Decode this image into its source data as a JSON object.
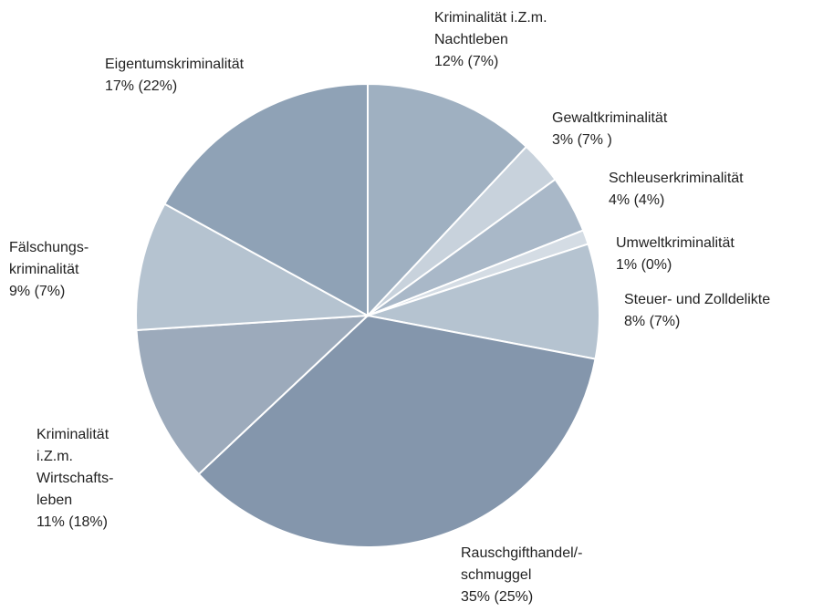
{
  "chart_data": {
    "type": "pie",
    "categories": [
      [
        "Kriminalität i.Z.m.",
        "Nachtleben"
      ],
      [
        "Gewaltkriminalität"
      ],
      [
        "Schleuserkriminalität"
      ],
      [
        "Umweltkriminalität"
      ],
      [
        "Steuer- und Zolldelikte"
      ],
      [
        "Rauschgifthandel/-",
        "schmuggel"
      ],
      [
        "Kriminalität",
        "i.Z.m.",
        "Wirtschafts-",
        "leben"
      ],
      [
        "Fälschungs-",
        "kriminalität"
      ],
      [
        "Eigentumskriminalität"
      ]
    ],
    "values": [
      12,
      3,
      4,
      1,
      8,
      35,
      11,
      9,
      17
    ],
    "value_labels": [
      "12%",
      "3%",
      "4%",
      "1%",
      "8%",
      "35%",
      "11%",
      "9%",
      "17%"
    ],
    "prior_labels": [
      "(7%)",
      "(7% )",
      "(4%)",
      "(0%)",
      "(7%)",
      "(25%)",
      "(18%)",
      "(7%)",
      "(22%)"
    ],
    "colors": [
      "#9fb0c1",
      "#c8d2dc",
      "#a9b8c8",
      "#d4dce4",
      "#b5c3d0",
      "#8496ac",
      "#9caabb",
      "#b5c3d0",
      "#8fa2b6"
    ]
  }
}
